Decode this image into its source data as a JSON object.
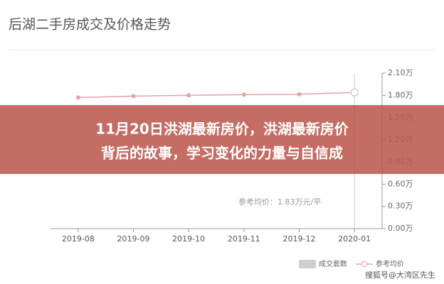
{
  "chart_data": {
    "type": "line",
    "title": "后湖二手房成交及价格走势",
    "categories": [
      "2019-08",
      "2019-09",
      "2019-10",
      "2019-11",
      "2019-12",
      "2020-01"
    ],
    "series": [
      {
        "name": "成交套数",
        "type": "bar",
        "color": "#cfcfcf",
        "values": [
          null,
          null,
          null,
          null,
          null,
          null
        ]
      },
      {
        "name": "参考均价",
        "type": "line",
        "color": "#e6a3a3",
        "values": [
          1.77,
          1.79,
          1.8,
          1.81,
          1.815,
          1.84
        ]
      }
    ],
    "annotation": "参考均价：1.83万元/平",
    "ylim": [
      0,
      2.1
    ],
    "yticks": [
      {
        "value": 0,
        "label": "0.00万"
      },
      {
        "value": 0.3,
        "label": "0.30万"
      },
      {
        "value": 0.6,
        "label": "0.60万"
      },
      {
        "value": 0.9,
        "label": "0.90万"
      },
      {
        "value": 1.2,
        "label": "1.20万"
      },
      {
        "value": 1.5,
        "label": "1.50万"
      },
      {
        "value": 1.8,
        "label": "1.80万"
      },
      {
        "value": 2.1,
        "label": "2.10万"
      }
    ]
  },
  "banner": {
    "lines": [
      "11月20日洪湖最新房价，洪湖最新房价",
      "背后的故事，学习变化的力量与自信成"
    ]
  },
  "watermark": "搜狐号@大湾区先生"
}
